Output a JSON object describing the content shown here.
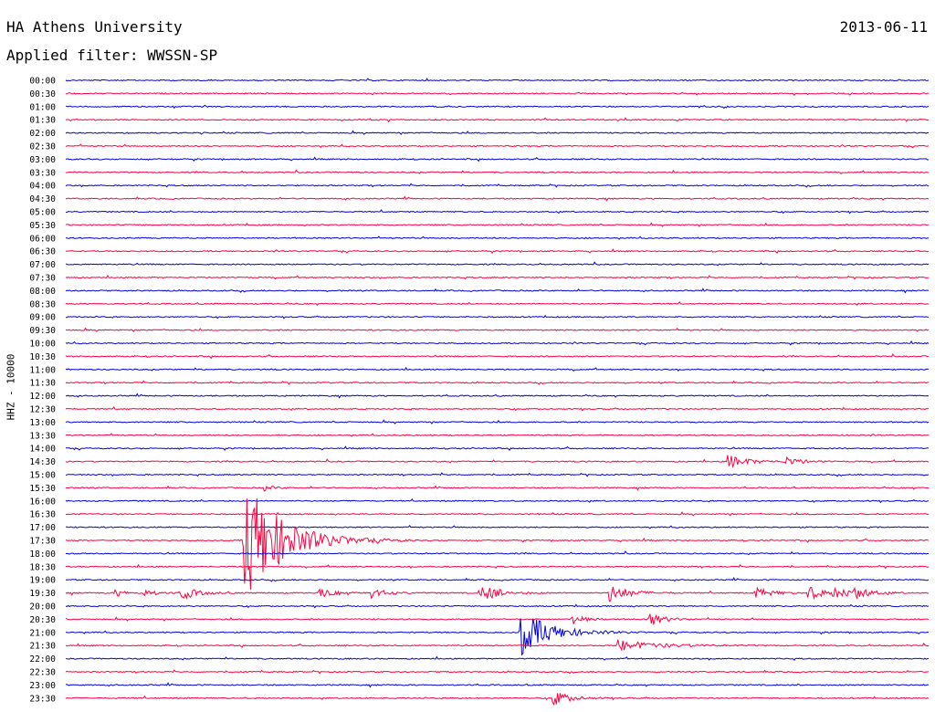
{
  "header": {
    "station": "HA Athens University",
    "date": "2013-06-11",
    "filter": "Applied filter: WWSSN-SP"
  },
  "chart_data": {
    "type": "line",
    "title": "HA Athens University",
    "ylabel": "HHZ - 10000",
    "rows": [
      "00:00",
      "00:30",
      "01:00",
      "01:30",
      "02:00",
      "02:30",
      "03:00",
      "03:30",
      "04:00",
      "04:30",
      "05:00",
      "05:30",
      "06:00",
      "06:30",
      "07:00",
      "07:30",
      "08:00",
      "08:30",
      "09:00",
      "09:30",
      "10:00",
      "10:30",
      "11:00",
      "11:30",
      "12:00",
      "12:30",
      "13:00",
      "13:30",
      "14:00",
      "14:30",
      "15:00",
      "15:30",
      "16:00",
      "16:30",
      "17:00",
      "17:30",
      "18:00",
      "18:30",
      "19:00",
      "19:30",
      "20:00",
      "20:30",
      "21:00",
      "21:30",
      "22:00",
      "22:30",
      "23:00",
      "23:30"
    ],
    "colors": {
      "even_rows": "#0000e0",
      "odd_rows": "#ff0040"
    },
    "events": [
      {
        "row": "14:30",
        "at_min": 23.0,
        "amplitude": 8,
        "duration_min": 1.0
      },
      {
        "row": "14:30",
        "at_min": 25.0,
        "amplitude": 5,
        "duration_min": 0.8
      },
      {
        "row": "15:30",
        "at_min": 6.9,
        "amplitude": 3,
        "duration_min": 0.5
      },
      {
        "row": "17:30",
        "at_min": 6.2,
        "amplitude": 70,
        "duration_min": 2.0
      },
      {
        "row": "19:30",
        "at_min": 1.7,
        "amplitude": 4,
        "duration_min": 0.6
      },
      {
        "row": "19:30",
        "at_min": 2.7,
        "amplitude": 4,
        "duration_min": 0.6
      },
      {
        "row": "19:30",
        "at_min": 4.0,
        "amplitude": 8,
        "duration_min": 0.8
      },
      {
        "row": "19:30",
        "at_min": 8.8,
        "amplitude": 6,
        "duration_min": 0.8
      },
      {
        "row": "19:30",
        "at_min": 10.6,
        "amplitude": 6,
        "duration_min": 0.8
      },
      {
        "row": "19:30",
        "at_min": 14.4,
        "amplitude": 10,
        "duration_min": 1.0
      },
      {
        "row": "19:30",
        "at_min": 18.9,
        "amplitude": 10,
        "duration_min": 1.0
      },
      {
        "row": "19:30",
        "at_min": 24.0,
        "amplitude": 6,
        "duration_min": 0.8
      },
      {
        "row": "19:30",
        "at_min": 25.8,
        "amplitude": 8,
        "duration_min": 0.8
      },
      {
        "row": "19:30",
        "at_min": 26.7,
        "amplitude": 8,
        "duration_min": 0.8
      },
      {
        "row": "19:30",
        "at_min": 27.4,
        "amplitude": 6,
        "duration_min": 0.8
      },
      {
        "row": "20:30",
        "at_min": 17.6,
        "amplitude": 6,
        "duration_min": 0.6
      },
      {
        "row": "20:30",
        "at_min": 20.3,
        "amplitude": 8,
        "duration_min": 0.7
      },
      {
        "row": "21:00",
        "at_min": 15.8,
        "amplitude": 26,
        "duration_min": 1.5
      },
      {
        "row": "21:30",
        "at_min": 19.2,
        "amplitude": 6,
        "duration_min": 2.0
      },
      {
        "row": "23:30",
        "at_min": 16.9,
        "amplitude": 10,
        "duration_min": 0.8
      }
    ]
  }
}
